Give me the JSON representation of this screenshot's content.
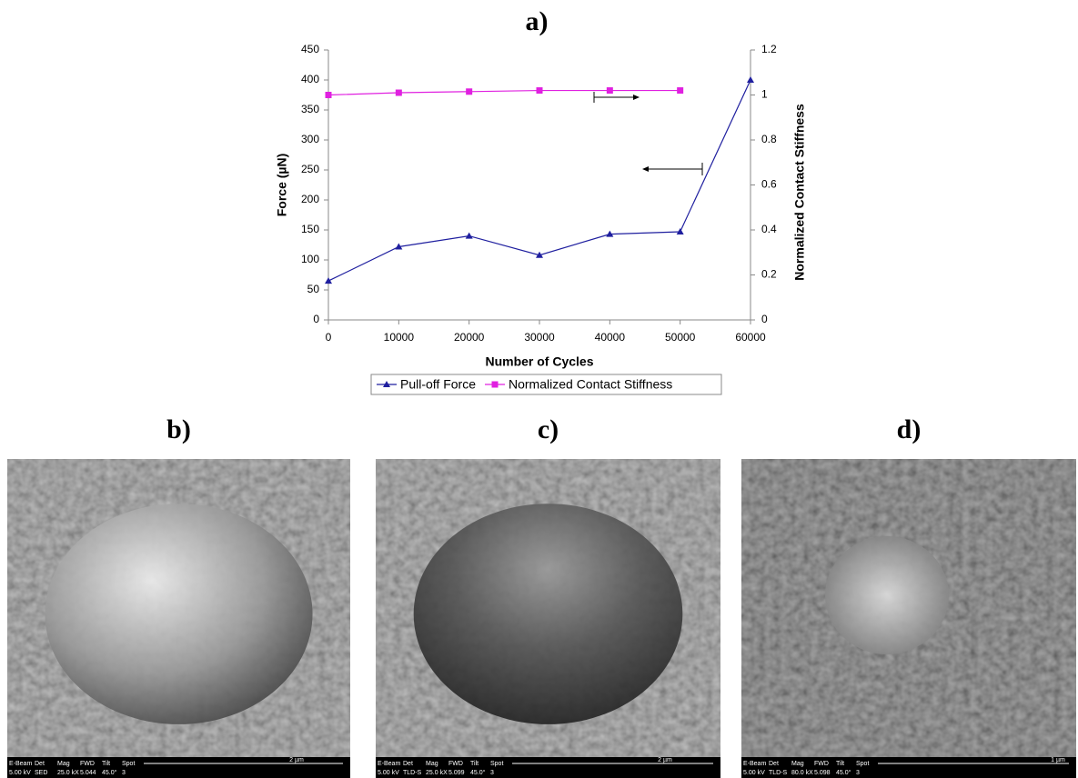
{
  "chart_data": {
    "type": "line",
    "title": "a)",
    "x_label": "Number of Cycles",
    "y_label": "Force (µN)",
    "y2_label": "Normalized Contact Stiffness",
    "x": [
      0,
      10000,
      20000,
      30000,
      40000,
      50000,
      60000
    ],
    "series": [
      {
        "name": "Pull-off Force",
        "color": "#1f1f9f",
        "marker": "triangle",
        "values": [
          65,
          122,
          140,
          108,
          143,
          147,
          400
        ]
      },
      {
        "name": "Normalized Contact Stiffness",
        "color": "#e020e0",
        "marker": "square",
        "axis": "y2",
        "values": [
          1.0,
          1.01,
          1.015,
          1.02,
          1.02,
          1.02,
          null
        ]
      }
    ],
    "xlim": [
      0,
      60000
    ],
    "xticks": [
      0,
      10000,
      20000,
      30000,
      40000,
      50000,
      60000
    ],
    "ylim": [
      0,
      450
    ],
    "yticks": [
      0,
      50,
      100,
      150,
      200,
      250,
      300,
      350,
      400,
      450
    ],
    "y2lim": [
      0,
      1.2
    ],
    "y2ticks": [
      0,
      0.2,
      0.4,
      0.6,
      0.8,
      1,
      1.2
    ],
    "grid": false,
    "legend": "bottom"
  },
  "panels": [
    {
      "label": "b)",
      "info_headers": [
        "E-Beam",
        "Det",
        "Mag",
        "FWD",
        "Tilt",
        "Spot"
      ],
      "info_values": [
        "5.00 kV",
        "SED",
        "25.0 kX",
        "5.044",
        "45.0°",
        "3"
      ],
      "scale": "2 µm"
    },
    {
      "label": "c)",
      "info_headers": [
        "E-Beam",
        "Det",
        "Mag",
        "FWD",
        "Tilt",
        "Spot"
      ],
      "info_values": [
        "5.00 kV",
        "TLD-S",
        "25.0 kX",
        "5.099",
        "45.0°",
        "3"
      ],
      "scale": "2 µm"
    },
    {
      "label": "d)",
      "info_headers": [
        "E-Beam",
        "Det",
        "Mag",
        "FWD",
        "Tilt",
        "Spot"
      ],
      "info_values": [
        "5.00 kV",
        "TLD-S",
        "80.0 kX",
        "5.098",
        "45.0°",
        "3"
      ],
      "scale": "1 µm"
    }
  ]
}
